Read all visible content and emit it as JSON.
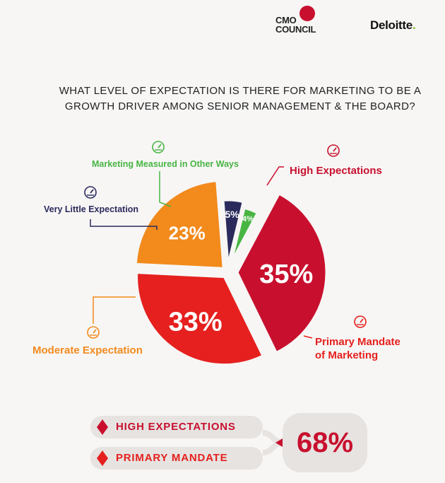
{
  "logos": {
    "cmo_line1": "CMO",
    "cmo_line2": "COUNCIL",
    "deloitte": "Deloitte",
    "deloitte_dot": "."
  },
  "colors": {
    "high": "#c8102e",
    "primary": "#e5201e",
    "moderate": "#f28a1c",
    "little": "#2b2a5c",
    "other": "#48b543",
    "total_accent": "#c8102e"
  },
  "chart_data": {
    "type": "pie",
    "title": "WHAT LEVEL OF EXPECTATION IS THERE FOR MARKETING TO BE A GROWTH DRIVER AMONG SENIOR MANAGEMENT & THE BOARD?",
    "slices": [
      {
        "label": "High Expectations",
        "value": 35,
        "value_label": "35%",
        "color": "#c8102e",
        "icon": "gauge-icon"
      },
      {
        "label": "Primary Mandate of Marketing",
        "value": 33,
        "value_label": "33%",
        "color": "#e5201e",
        "icon": "gauge-icon"
      },
      {
        "label": "Moderate Expectation",
        "value": 23,
        "value_label": "23%",
        "color": "#f28a1c",
        "icon": "gauge-icon"
      },
      {
        "label": "Very Little Expectation",
        "value": 5,
        "value_label": "5%",
        "color": "#2b2a5c",
        "icon": "gauge-icon"
      },
      {
        "label": "Marketing Measured in Other Ways",
        "value": 4,
        "value_label": "4%",
        "color": "#48b543",
        "icon": "gauge-icon"
      }
    ]
  },
  "summary": {
    "items": [
      {
        "label": "HIGH EXPECTATIONS",
        "color": "#c8102e"
      },
      {
        "label": "PRIMARY MANDATE",
        "color": "#e5201e"
      }
    ],
    "total": "68%"
  }
}
